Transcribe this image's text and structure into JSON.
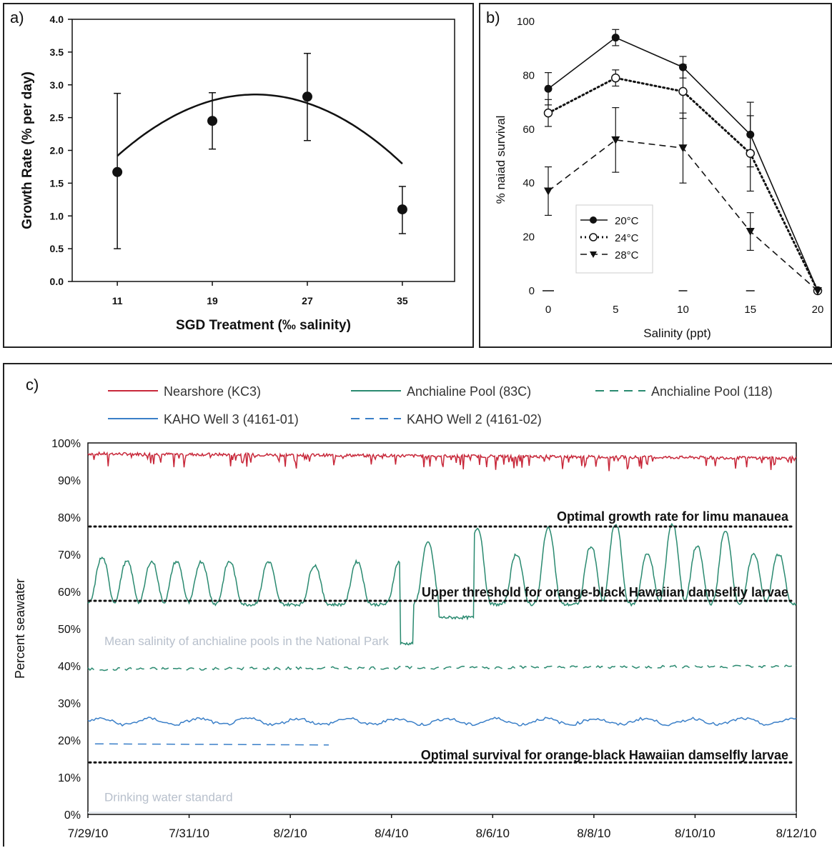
{
  "chart_data": [
    {
      "panel": "a)",
      "type": "scatter",
      "xlabel": "SGD Treatment (‰ salinity)",
      "ylabel": "Growth Rate (% per day)",
      "categories": [
        "11",
        "19",
        "27",
        "35"
      ],
      "x": [
        11,
        19,
        27,
        35
      ],
      "values": [
        1.67,
        2.45,
        2.82,
        1.1
      ],
      "err_low": [
        0.5,
        2.02,
        2.15,
        0.73
      ],
      "err_high": [
        2.87,
        2.88,
        3.48,
        1.45
      ],
      "yticks": [
        "0.0",
        "0.5",
        "1.0",
        "1.5",
        "2.0",
        "2.5",
        "3.0",
        "3.5",
        "4.0"
      ],
      "ylim": [
        0,
        4
      ],
      "xlim": [
        7.2,
        39.4
      ],
      "fit": "quadratic",
      "fit_coeffs": [
        -0.6925,
        0.3131,
        -0.006914
      ],
      "grid": false
    },
    {
      "panel": "b)",
      "type": "line",
      "xlabel": "Salinity (ppt)",
      "ylabel": "% naiad survival",
      "x": [
        0,
        5,
        10,
        15,
        20
      ],
      "xticks": [
        "0",
        "5",
        "10",
        "15",
        "20"
      ],
      "yticks": [
        "0",
        "20",
        "40",
        "60",
        "80",
        "100"
      ],
      "xlim": [
        0,
        20
      ],
      "ylim": [
        0,
        100
      ],
      "series": [
        {
          "name": "20°C",
          "values": [
            75,
            94,
            83,
            58,
            0
          ],
          "err": [
            6,
            3,
            4,
            12,
            0
          ],
          "marker": "filled-circle",
          "dash": "solid"
        },
        {
          "name": "24°C",
          "values": [
            66,
            79,
            74,
            51,
            0
          ],
          "err": [
            5,
            3,
            10,
            14,
            0
          ],
          "marker": "open-circle",
          "dash": "dotted"
        },
        {
          "name": "28°C",
          "values": [
            37,
            56,
            53,
            22,
            0
          ],
          "err": [
            9,
            12,
            13,
            7,
            0
          ],
          "marker": "triangle-down",
          "dash": "dashed"
        }
      ],
      "legend": "bottom-left"
    },
    {
      "panel": "c)",
      "type": "line",
      "ylabel": "Percent seawater",
      "xticks": [
        "7/29/10",
        "7/31/10",
        "8/2/10",
        "8/4/10",
        "8/6/10",
        "8/8/10",
        "8/10/10",
        "8/12/10"
      ],
      "xlim": [
        "7/29/10",
        "8/12/10"
      ],
      "yticks": [
        "0%",
        "10%",
        "20%",
        "30%",
        "40%",
        "50%",
        "60%",
        "70%",
        "80%",
        "90%",
        "100%"
      ],
      "ylim": [
        0,
        100
      ],
      "series": [
        {
          "name": "Nearshore (KC3)",
          "color": "#c8283a",
          "dash": "solid",
          "mean": 96.5
        },
        {
          "name": "Anchialine Pool (83C)",
          "color": "#2a8a70",
          "dash": "solid",
          "low": 56.5,
          "high": 68
        },
        {
          "name": "Anchialine Pool (118)",
          "color": "#2a8a70",
          "dash": "dashed",
          "mean": 39.5
        },
        {
          "name": "KAHO Well 3 (4161-01)",
          "color": "#3a7fc8",
          "dash": "solid",
          "mean": 25
        },
        {
          "name": "KAHO Well 2 (4161-02)",
          "color": "#3a7fc8",
          "dash": "dashed",
          "mean": 19
        }
      ],
      "reference_lines": [
        {
          "label": "Optimal growth rate for limu manauea",
          "value": 77.5
        },
        {
          "label": "Upper threshold for orange-black Hawaiian damselfly larvae",
          "value": 57.5
        },
        {
          "label": "Optimal survival for orange-black Hawaiian damselfly larvae",
          "value": 14
        }
      ],
      "faint_labels": [
        {
          "label": "Mean salinity of anchialine pools in the National Park",
          "value": 46
        },
        {
          "label": "Drinking water standard",
          "value": 0.5
        }
      ]
    }
  ]
}
